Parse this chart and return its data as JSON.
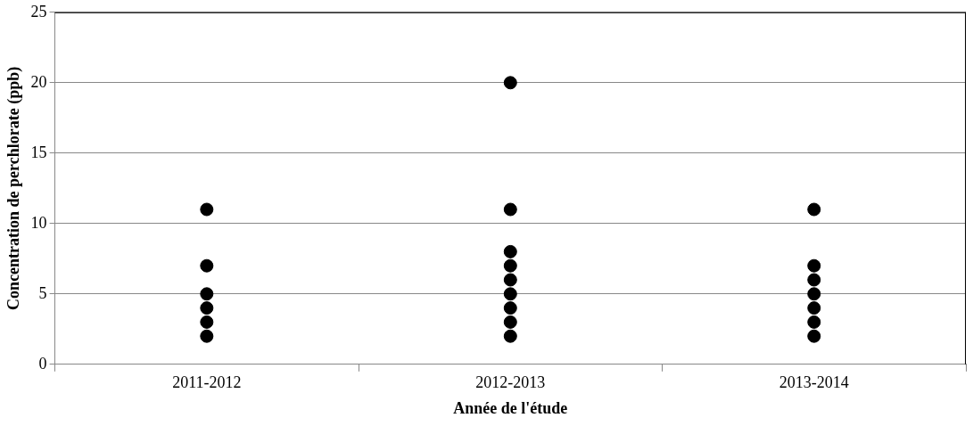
{
  "chart_data": {
    "type": "scatter",
    "xlabel": "Année de l'étude",
    "ylabel": "Concentration de perchlorate (ppb)",
    "categories": [
      "2011-2012",
      "2012-2013",
      "2013-2014"
    ],
    "series": [
      {
        "color": "#000000",
        "x": [
          "2011-2012",
          "2011-2012",
          "2011-2012",
          "2011-2012",
          "2011-2012",
          "2011-2012",
          "2012-2013",
          "2012-2013",
          "2012-2013",
          "2012-2013",
          "2012-2013",
          "2012-2013",
          "2012-2013",
          "2012-2013",
          "2012-2013",
          "2013-2014",
          "2013-2014",
          "2013-2014",
          "2013-2014",
          "2013-2014",
          "2013-2014",
          "2013-2014"
        ],
        "values": [
          2,
          3,
          4,
          5,
          7,
          11,
          2,
          3,
          4,
          5,
          6,
          7,
          8,
          11,
          20,
          2,
          3,
          4,
          5,
          6,
          7,
          11
        ]
      }
    ],
    "ylim": [
      0,
      25
    ],
    "yticks": [
      0,
      5,
      10,
      15,
      20,
      25
    ],
    "grid": "y",
    "legend": false,
    "marker": "circle"
  }
}
